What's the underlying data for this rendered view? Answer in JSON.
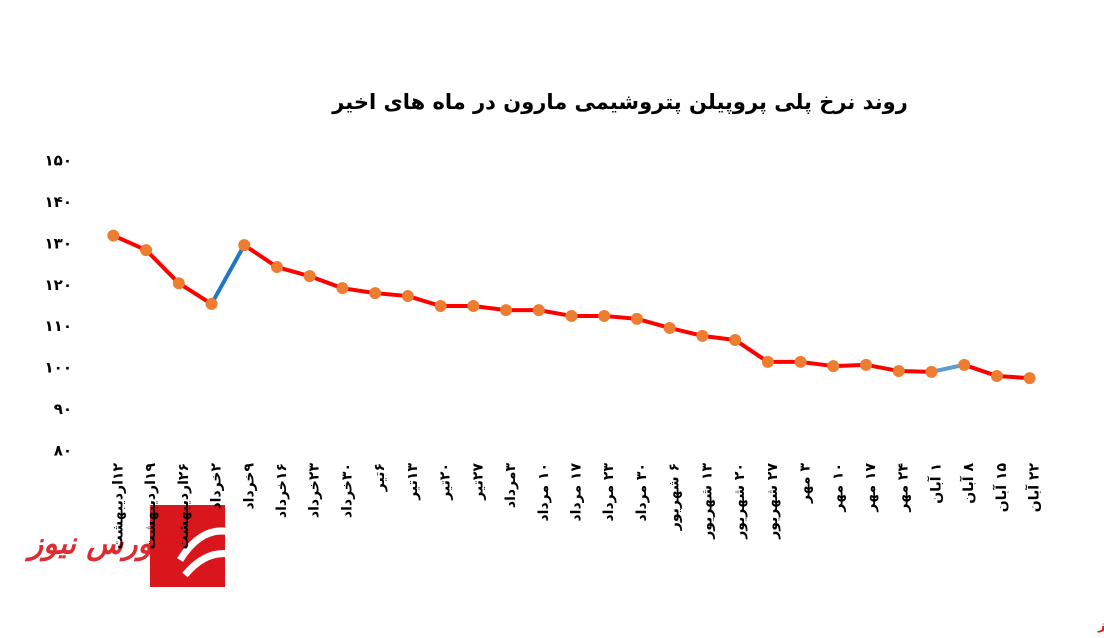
{
  "chart_data": {
    "type": "line",
    "title": "روند نرخ پلی پروپیلن پتروشیمی مارون در ماه های اخیر",
    "source": "بورس نیوز",
    "categories": [
      "۱۲اردیبهشت",
      "۱۹اردیبهشت",
      "۲۶اردیبهشت",
      "۲خرداد",
      "۹خرداد",
      "۱۶خرداد",
      "۲۳خرداد",
      "۳۰خرداد",
      "۶تیر",
      "۱۳تیر",
      "۲۰تیر",
      "۲۷تیر",
      "۳مرداد",
      "۱۰ مرداد",
      "۱۷ مرداد",
      "۲۳ مرداد",
      "۳۰ مرداد",
      "۶ شهریور",
      "۱۳ شهریور",
      "۲۰ شهریور",
      "۲۷ شهریور",
      "۳ مهر",
      "۱۰ مهر",
      "۱۷ مهر",
      "۲۴ مهر",
      "۱ آبان",
      "۸ آبان",
      "۱۵ آبان",
      "۲۲ آبان"
    ],
    "series": [
      {
        "color": "#ff0000",
        "marker_color": "#ed7d31",
        "values": [
          132,
          128.5,
          120.5,
          115.5,
          129.7,
          124.4,
          122.2,
          119.3,
          118.1,
          117.4,
          115,
          115,
          114,
          114,
          112.6,
          112.6,
          111.9,
          109.7,
          107.8,
          106.8,
          101.5,
          101.5,
          100.5,
          100.8,
          99.3,
          99.1,
          100.8,
          98.1,
          97.6
        ],
        "segment_colors": [
          "#ff0000",
          "#ff0000",
          "#ff0000",
          "#1f77c4",
          "#ff0000",
          "#ff0000",
          "#ff0000",
          "#ff0000",
          "#ff0000",
          "#ff0000",
          "#ff0000",
          "#ff0000",
          "#ff0000",
          "#ff0000",
          "#ff0000",
          "#ff0000",
          "#ff0000",
          "#ff0000",
          "#ff0000",
          "#ff0000",
          "#ff0000",
          "#ff0000",
          "#ff0000",
          "#ff0000",
          "#ff0000",
          "#5b9bd5",
          "#ff0000",
          "#ff0000"
        ]
      }
    ],
    "ylim": [
      80,
      150
    ],
    "yticks": [
      {
        "value": 80,
        "label": "۸۰"
      },
      {
        "value": 90,
        "label": "۹۰"
      },
      {
        "value": 100,
        "label": "۱۰۰"
      },
      {
        "value": 110,
        "label": "۱۱۰"
      },
      {
        "value": 120,
        "label": "۱۲۰"
      },
      {
        "value": 130,
        "label": "۱۳۰"
      },
      {
        "value": 140,
        "label": "۱۴۰"
      },
      {
        "value": 150,
        "label": "۱۵۰"
      }
    ],
    "grid": false
  }
}
